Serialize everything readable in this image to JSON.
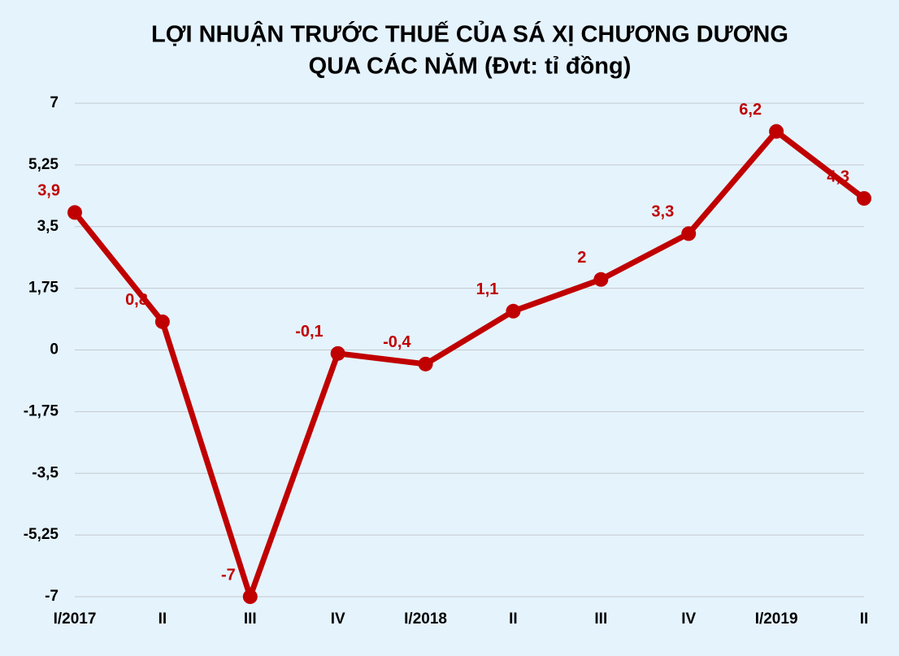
{
  "chart_data": {
    "type": "line",
    "title": [
      "LỢI NHUẬN TRƯỚC THUẾ CỦA SÁ XỊ CHƯƠNG DƯƠNG",
      "QUA CÁC NĂM (Đvt: tỉ đồng)"
    ],
    "categories": [
      "I/2017",
      "II",
      "III",
      "IV",
      "I/2018",
      "II",
      "III",
      "IV",
      "I/2019",
      "II"
    ],
    "series": [
      {
        "color": "#c00000",
        "values": [
          3.9,
          0.8,
          -7,
          -0.1,
          -0.4,
          1.1,
          2,
          3.3,
          6.2,
          4.3
        ],
        "value_labels": [
          "3,9",
          "0,8",
          "-7",
          "-0,1",
          "-0,4",
          "1,1",
          "2",
          "3,3",
          "6,2",
          "4,3"
        ]
      }
    ],
    "ylim": [
      -7,
      7
    ],
    "yticks": [
      {
        "value": -7,
        "label": "-7"
      },
      {
        "value": -5.25,
        "label": "-5,25"
      },
      {
        "value": -3.5,
        "label": "-3,5"
      },
      {
        "value": -1.75,
        "label": "-1,75"
      },
      0,
      {
        "value": 1.75,
        "label": "1,75"
      },
      {
        "value": 3.5,
        "label": "3,5"
      },
      {
        "value": 5.25,
        "label": "5,25"
      },
      7
    ],
    "grid": true
  }
}
